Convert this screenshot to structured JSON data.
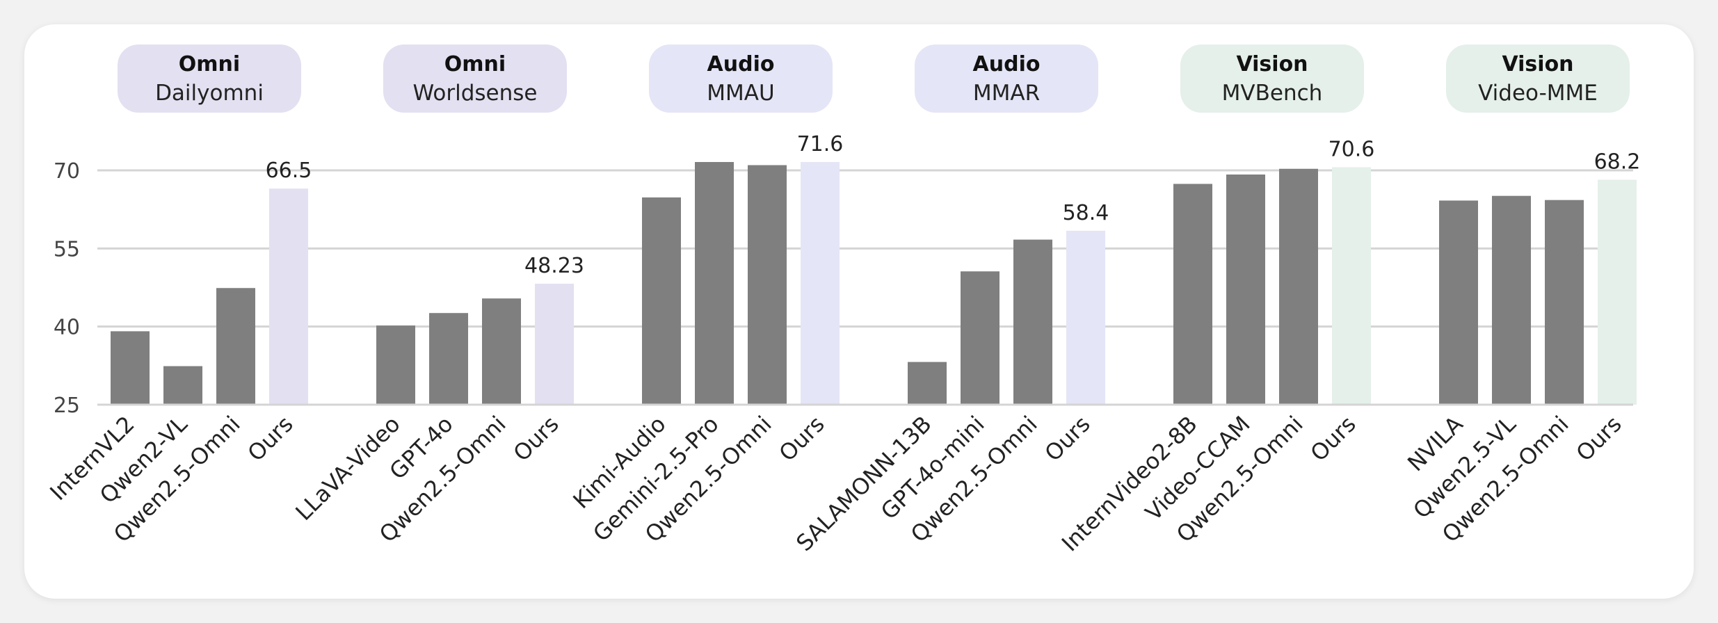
{
  "chart_data": {
    "type": "bar",
    "y_ticks": [
      25,
      40,
      55,
      70
    ],
    "ylim": [
      25,
      74
    ],
    "grid": true,
    "colors": {
      "baseline_bar": "#7f7f7f",
      "omni_accent": "#e3e0f1",
      "audio_accent": "#e4e5f6",
      "vision_accent": "#e5f0ea",
      "grid": "#d4d4d4",
      "text": "#222222"
    },
    "groups": [
      {
        "category": "Omni",
        "benchmark": "Dailyomni",
        "accent": "omni",
        "bars": [
          {
            "label": "InternVL2",
            "value": 39.1
          },
          {
            "label": "Qwen2-VL",
            "value": 32.4
          },
          {
            "label": "Qwen2.5-Omni",
            "value": 47.4
          },
          {
            "label": "Ours",
            "value": 66.5,
            "value_label": "66.5",
            "highlight": true
          }
        ]
      },
      {
        "category": "Omni",
        "benchmark": "Worldsense",
        "accent": "omni",
        "bars": [
          {
            "label": "LLaVA-Video",
            "value": 40.2
          },
          {
            "label": "GPT-4o",
            "value": 42.6
          },
          {
            "label": "Qwen2.5-Omni",
            "value": 45.4
          },
          {
            "label": "Ours",
            "value": 48.23,
            "value_label": "48.23",
            "highlight": true
          }
        ]
      },
      {
        "category": "Audio",
        "benchmark": "MMAU",
        "accent": "audio",
        "bars": [
          {
            "label": "Kimi-Audio",
            "value": 64.8
          },
          {
            "label": "Gemini-2.5-Pro",
            "value": 71.6
          },
          {
            "label": "Qwen2.5-Omni",
            "value": 71.0
          },
          {
            "label": "Ours",
            "value": 71.6,
            "value_label": "71.6",
            "highlight": true
          }
        ]
      },
      {
        "category": "Audio",
        "benchmark": "MMAR",
        "accent": "audio",
        "bars": [
          {
            "label": "SALAMONN-13B",
            "value": 33.2
          },
          {
            "label": "GPT-4o-mini",
            "value": 50.6
          },
          {
            "label": "Qwen2.5-Omni",
            "value": 56.7
          },
          {
            "label": "Ours",
            "value": 58.4,
            "value_label": "58.4",
            "highlight": true
          }
        ]
      },
      {
        "category": "Vision",
        "benchmark": "MVBench",
        "accent": "vision",
        "bars": [
          {
            "label": "InternVideo2-8B",
            "value": 67.4
          },
          {
            "label": "Video-CCAM",
            "value": 69.2
          },
          {
            "label": "Qwen2.5-Omni",
            "value": 70.3
          },
          {
            "label": "Ours",
            "value": 70.6,
            "value_label": "70.6",
            "highlight": true
          }
        ]
      },
      {
        "category": "Vision",
        "benchmark": "Video-MME",
        "accent": "vision",
        "bars": [
          {
            "label": "NVILA",
            "value": 64.2
          },
          {
            "label": "Qwen2.5-VL",
            "value": 65.1
          },
          {
            "label": "Qwen2.5-Omni",
            "value": 64.3
          },
          {
            "label": "Ours",
            "value": 68.2,
            "value_label": "68.2",
            "highlight": true
          }
        ]
      }
    ]
  }
}
